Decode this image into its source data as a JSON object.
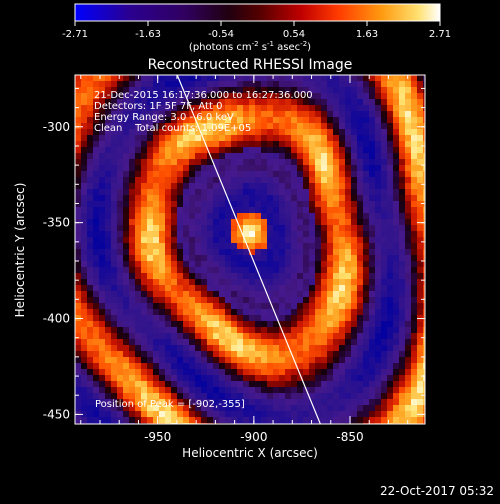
{
  "colorbar": {
    "tick_labels": [
      "-2.71",
      "-1.63",
      "-0.54",
      "0.54",
      "1.63",
      "2.71"
    ],
    "unit_label": "(photons cm",
    "unit_sup1": "-2",
    "unit_mid1": " s",
    "unit_sup2": "-1",
    "unit_mid2": " asec",
    "unit_sup3": "-2",
    "unit_end": ")",
    "gradient": [
      "#0000ff",
      "#200070",
      "#3a0a9a",
      "#2a0030",
      "#5a0000",
      "#c00000",
      "#ff4000",
      "#ff9000",
      "#ffd060",
      "#ffffff"
    ]
  },
  "image": {
    "title": "Reconstructed RHESSI Image",
    "info_lines": [
      "21-Dec-2015 16:17:36.000 to 16:27:36.000",
      "Detectors: 1F 5F 7F, Att 0",
      "Energy Range: 3.0 - 6.0 keV",
      "Clean    Total counts: 1.09E+05"
    ],
    "peak_text": "Position of Peak = [-902,-355]",
    "xlabel": "Heliocentric X (arcsec)",
    "ylabel": "Heliocentric Y (arcsec)",
    "x_ticks": [
      "-950",
      "-900",
      "-850"
    ],
    "y_ticks": [
      "-300",
      "-350",
      "-400",
      "-450"
    ],
    "x_tick_values": [
      -950,
      -900,
      -850
    ],
    "y_tick_values": [
      -300,
      -350,
      -400,
      -450
    ],
    "x_range": [
      -993,
      -811
    ],
    "y_range": [
      -455,
      -273
    ],
    "peak_x": -902,
    "peak_y": -355
  },
  "footer": {
    "date": "22-Oct-2017 05:32"
  }
}
